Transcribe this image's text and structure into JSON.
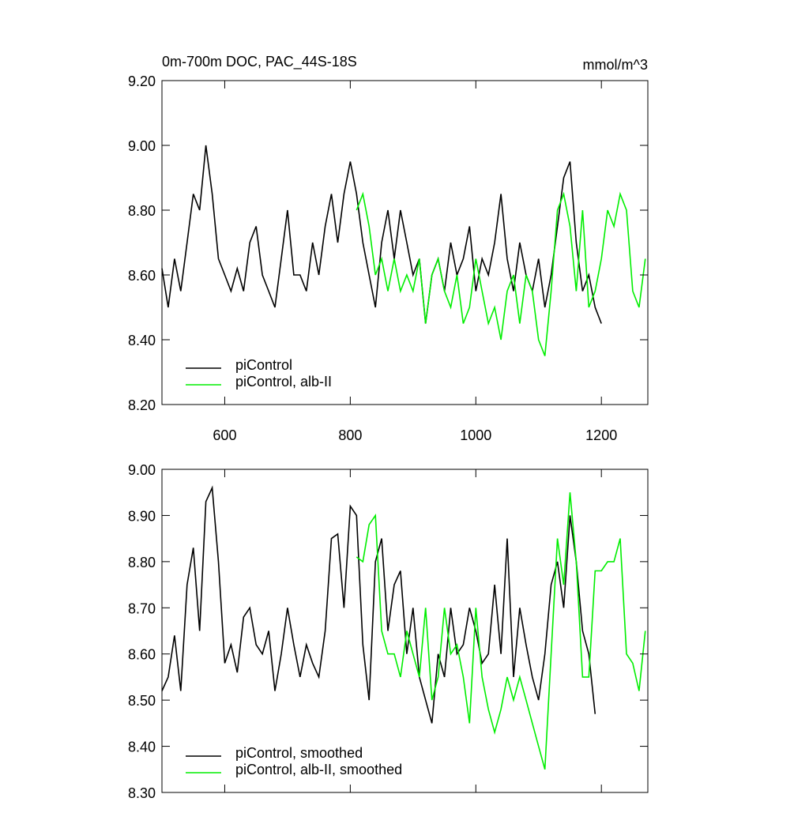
{
  "chart_data": [
    {
      "type": "line",
      "title": "0m-700m DOC, PAC_44S-18S",
      "units": "mmol/m^3",
      "xlim": [
        500,
        1274
      ],
      "xticks": [
        600,
        800,
        1000,
        1200
      ],
      "tick_labels": true,
      "ylim": [
        8.2,
        9.2
      ],
      "yticks": [
        {
          "value": 8.2,
          "label": "8.20"
        },
        {
          "value": 8.4,
          "label": "8.40"
        },
        {
          "value": 8.6,
          "label": "8.60"
        },
        {
          "value": 8.8,
          "label": "8.80"
        },
        {
          "value": 9.0,
          "label": "9.00"
        },
        {
          "value": 9.2,
          "label": "9.20"
        }
      ],
      "legend": "lower left",
      "series": [
        {
          "name": "piControl",
          "color": "#000000",
          "x": [
            500,
            510,
            520,
            530,
            540,
            550,
            560,
            570,
            580,
            590,
            600,
            610,
            620,
            630,
            640,
            650,
            660,
            670,
            680,
            690,
            700,
            710,
            720,
            730,
            740,
            750,
            760,
            770,
            780,
            790,
            800,
            810,
            820,
            830,
            840,
            850,
            860,
            870,
            880,
            890,
            900,
            910,
            920,
            930,
            940,
            950,
            960,
            970,
            980,
            990,
            1000,
            1010,
            1020,
            1030,
            1040,
            1050,
            1060,
            1070,
            1080,
            1090,
            1100,
            1110,
            1120,
            1130,
            1140,
            1150,
            1160,
            1170,
            1180,
            1190,
            1200
          ],
          "values": [
            8.62,
            8.5,
            8.65,
            8.55,
            8.7,
            8.85,
            8.8,
            9.0,
            8.85,
            8.65,
            8.6,
            8.55,
            8.62,
            8.55,
            8.7,
            8.75,
            8.6,
            8.55,
            8.5,
            8.65,
            8.8,
            8.6,
            8.6,
            8.55,
            8.7,
            8.6,
            8.75,
            8.85,
            8.7,
            8.85,
            8.95,
            8.85,
            8.7,
            8.6,
            8.5,
            8.7,
            8.8,
            8.65,
            8.8,
            8.7,
            8.6,
            8.65,
            8.45,
            8.6,
            8.65,
            8.55,
            8.7,
            8.6,
            8.65,
            8.75,
            8.55,
            8.65,
            8.6,
            8.7,
            8.85,
            8.65,
            8.55,
            8.7,
            8.6,
            8.55,
            8.65,
            8.5,
            8.6,
            8.75,
            8.9,
            8.95,
            8.7,
            8.55,
            8.6,
            8.5,
            8.45
          ]
        },
        {
          "name": "piControl, alb-II",
          "color": "#00ee00",
          "x": [
            810,
            820,
            830,
            840,
            850,
            860,
            870,
            880,
            890,
            900,
            910,
            920,
            930,
            940,
            950,
            960,
            970,
            980,
            990,
            1000,
            1010,
            1020,
            1030,
            1040,
            1050,
            1060,
            1070,
            1080,
            1090,
            1100,
            1110,
            1120,
            1130,
            1140,
            1150,
            1160,
            1170,
            1180,
            1190,
            1200,
            1210,
            1220,
            1230,
            1240,
            1250,
            1260,
            1270
          ],
          "values": [
            8.8,
            8.85,
            8.75,
            8.6,
            8.65,
            8.55,
            8.65,
            8.55,
            8.6,
            8.55,
            8.65,
            8.45,
            8.6,
            8.65,
            8.55,
            8.5,
            8.6,
            8.45,
            8.5,
            8.65,
            8.55,
            8.45,
            8.5,
            8.4,
            8.55,
            8.6,
            8.45,
            8.6,
            8.55,
            8.4,
            8.35,
            8.55,
            8.8,
            8.85,
            8.75,
            8.55,
            8.8,
            8.5,
            8.55,
            8.65,
            8.8,
            8.75,
            8.85,
            8.8,
            8.55,
            8.5,
            8.65
          ]
        }
      ]
    },
    {
      "type": "line",
      "xlim": [
        500,
        1274
      ],
      "xticks": [
        600,
        800,
        1000,
        1200
      ],
      "tick_labels": false,
      "ylim": [
        8.3,
        9.0
      ],
      "yticks": [
        {
          "value": 8.3,
          "label": "8.30"
        },
        {
          "value": 8.4,
          "label": "8.40"
        },
        {
          "value": 8.5,
          "label": "8.50"
        },
        {
          "value": 8.6,
          "label": "8.60"
        },
        {
          "value": 8.7,
          "label": "8.70"
        },
        {
          "value": 8.8,
          "label": "8.80"
        },
        {
          "value": 8.9,
          "label": "8.90"
        },
        {
          "value": 9.0,
          "label": "9.00"
        }
      ],
      "legend": "lower left",
      "series": [
        {
          "name": "piControl, smoothed",
          "color": "#000000",
          "x": [
            500,
            510,
            520,
            530,
            540,
            550,
            560,
            570,
            580,
            590,
            600,
            610,
            620,
            630,
            640,
            650,
            660,
            670,
            680,
            690,
            700,
            710,
            720,
            730,
            740,
            750,
            760,
            770,
            780,
            790,
            800,
            810,
            820,
            830,
            840,
            850,
            860,
            870,
            880,
            890,
            900,
            910,
            920,
            930,
            940,
            950,
            960,
            970,
            980,
            990,
            1000,
            1010,
            1020,
            1030,
            1040,
            1050,
            1060,
            1070,
            1080,
            1090,
            1100,
            1110,
            1120,
            1130,
            1140,
            1150,
            1160,
            1170,
            1180,
            1190
          ],
          "values": [
            8.52,
            8.55,
            8.64,
            8.52,
            8.75,
            8.83,
            8.65,
            8.93,
            8.96,
            8.8,
            8.58,
            8.62,
            8.56,
            8.68,
            8.7,
            8.62,
            8.6,
            8.65,
            8.52,
            8.6,
            8.7,
            8.62,
            8.55,
            8.62,
            8.58,
            8.55,
            8.65,
            8.85,
            8.86,
            8.7,
            8.92,
            8.9,
            8.62,
            8.5,
            8.8,
            8.85,
            8.65,
            8.75,
            8.78,
            8.6,
            8.7,
            8.55,
            8.5,
            8.45,
            8.6,
            8.55,
            8.7,
            8.6,
            8.62,
            8.7,
            8.65,
            8.58,
            8.6,
            8.75,
            8.6,
            8.85,
            8.55,
            8.7,
            8.62,
            8.55,
            8.5,
            8.6,
            8.75,
            8.8,
            8.7,
            8.9,
            8.8,
            8.65,
            8.6,
            8.47
          ]
        },
        {
          "name": "piControl, alb-II, smoothed",
          "color": "#00ee00",
          "x": [
            810,
            820,
            830,
            840,
            850,
            860,
            870,
            880,
            890,
            900,
            910,
            920,
            930,
            940,
            950,
            960,
            970,
            980,
            990,
            1000,
            1010,
            1020,
            1030,
            1040,
            1050,
            1060,
            1070,
            1080,
            1090,
            1100,
            1110,
            1120,
            1130,
            1140,
            1150,
            1160,
            1170,
            1180,
            1190,
            1200,
            1210,
            1220,
            1230,
            1240,
            1250,
            1260,
            1270
          ],
          "values": [
            8.81,
            8.8,
            8.88,
            8.9,
            8.65,
            8.6,
            8.6,
            8.55,
            8.65,
            8.6,
            8.55,
            8.7,
            8.5,
            8.55,
            8.7,
            8.6,
            8.62,
            8.55,
            8.45,
            8.7,
            8.55,
            8.48,
            8.43,
            8.48,
            8.55,
            8.5,
            8.55,
            8.5,
            8.45,
            8.4,
            8.35,
            8.6,
            8.85,
            8.75,
            8.95,
            8.8,
            8.55,
            8.55,
            8.78,
            8.78,
            8.8,
            8.8,
            8.85,
            8.6,
            8.58,
            8.52,
            8.65
          ]
        }
      ]
    }
  ]
}
